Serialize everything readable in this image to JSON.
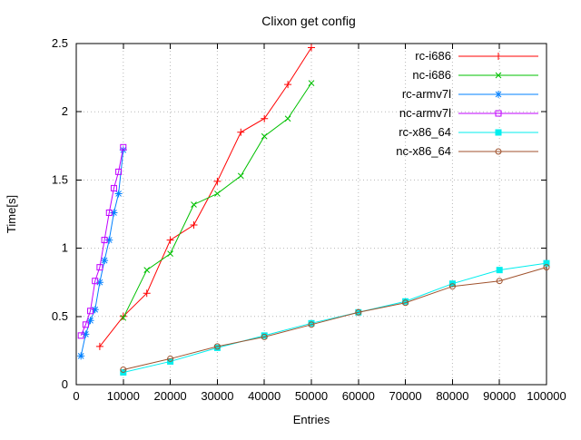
{
  "chart_data": {
    "type": "line",
    "title": "Clixon get config",
    "xlabel": "Entries",
    "ylabel": "Time[s]",
    "xlim": [
      0,
      100000
    ],
    "ylim": [
      0,
      2.5
    ],
    "xticks": [
      0,
      10000,
      20000,
      30000,
      40000,
      50000,
      60000,
      70000,
      80000,
      90000,
      100000
    ],
    "yticks": [
      0,
      0.5,
      1,
      1.5,
      2,
      2.5
    ],
    "grid": true,
    "background": "#ffffff",
    "legend_position": "top-right",
    "series": [
      {
        "name": "rc-i686",
        "color": "#ff0000",
        "marker": "plus",
        "x": [
          5000,
          10000,
          15000,
          20000,
          25000,
          30000,
          35000,
          40000,
          45000,
          50000
        ],
        "y": [
          0.28,
          0.5,
          0.67,
          1.06,
          1.17,
          1.49,
          1.85,
          1.95,
          2.2,
          2.47
        ]
      },
      {
        "name": "nc-i686",
        "color": "#00c000",
        "marker": "cross",
        "x": [
          10000,
          15000,
          20000,
          25000,
          30000,
          35000,
          40000,
          45000,
          50000
        ],
        "y": [
          0.49,
          0.84,
          0.96,
          1.32,
          1.4,
          1.53,
          1.82,
          1.95,
          2.21
        ]
      },
      {
        "name": "rc-armv7l",
        "color": "#0080ff",
        "marker": "asterisk",
        "x": [
          1000,
          2000,
          3000,
          4000,
          5000,
          6000,
          7000,
          8000,
          9000,
          10000
        ],
        "y": [
          0.21,
          0.37,
          0.47,
          0.55,
          0.75,
          0.91,
          1.06,
          1.26,
          1.4,
          1.72
        ]
      },
      {
        "name": "nc-armv7l",
        "color": "#c000ff",
        "marker": "square-open",
        "x": [
          1000,
          2000,
          3000,
          4000,
          5000,
          6000,
          7000,
          8000,
          9000,
          10000
        ],
        "y": [
          0.36,
          0.44,
          0.54,
          0.76,
          0.86,
          1.06,
          1.26,
          1.44,
          1.56,
          1.74
        ]
      },
      {
        "name": "rc-x86_64",
        "color": "#00eeee",
        "marker": "square-filled",
        "x": [
          10000,
          20000,
          30000,
          40000,
          50000,
          60000,
          70000,
          80000,
          90000,
          100000
        ],
        "y": [
          0.09,
          0.17,
          0.27,
          0.36,
          0.45,
          0.53,
          0.61,
          0.74,
          0.84,
          0.89
        ]
      },
      {
        "name": "nc-x86_64",
        "color": "#a0522d",
        "marker": "circle-open",
        "x": [
          10000,
          20000,
          30000,
          40000,
          50000,
          60000,
          70000,
          80000,
          90000,
          100000
        ],
        "y": [
          0.11,
          0.19,
          0.28,
          0.35,
          0.44,
          0.53,
          0.6,
          0.72,
          0.76,
          0.86
        ]
      }
    ]
  }
}
